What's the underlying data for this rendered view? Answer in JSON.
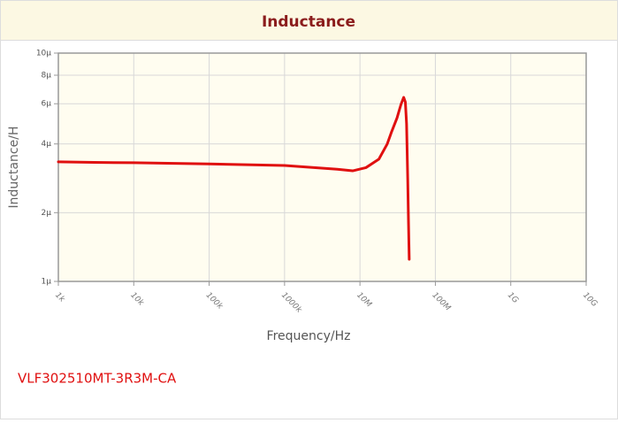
{
  "header": {
    "title": "Inductance"
  },
  "chart_data": {
    "type": "line",
    "xlabel": "Frequency/Hz",
    "ylabel": "Inductance/H",
    "xscale": "log",
    "yscale": "log",
    "grid": true,
    "xlim": [
      1000,
      10000000000
    ],
    "ylim": [
      1e-06,
      1e-05
    ],
    "xticks": [
      {
        "value": 1000,
        "label": "1k"
      },
      {
        "value": 10000,
        "label": "10k"
      },
      {
        "value": 100000,
        "label": "100k"
      },
      {
        "value": 1000000,
        "label": "1000k"
      },
      {
        "value": 10000000,
        "label": "10M"
      },
      {
        "value": 100000000,
        "label": "100M"
      },
      {
        "value": 1000000000,
        "label": "1G"
      },
      {
        "value": 10000000000,
        "label": "10G"
      }
    ],
    "yticks": [
      {
        "value": 1e-06,
        "label": "1µ"
      },
      {
        "value": 2e-06,
        "label": "2µ"
      },
      {
        "value": 4e-06,
        "label": "4µ"
      },
      {
        "value": 6e-06,
        "label": "6µ"
      },
      {
        "value": 8e-06,
        "label": "8µ"
      },
      {
        "value": 1e-05,
        "label": "10µ"
      }
    ],
    "x": [
      1000,
      3000,
      10000,
      100000,
      1000000,
      5000000,
      8000000,
      12000000,
      17800000,
      23000000,
      26000000,
      31000000,
      35000000,
      38000000,
      40000000,
      41500000,
      43000000,
      44000000,
      45000000
    ],
    "series": [
      {
        "name": "VLF302510MT-3R3M-CA",
        "color": "#e01010",
        "values": [
          3.34e-06,
          3.32e-06,
          3.31e-06,
          3.27e-06,
          3.22e-06,
          3.1e-06,
          3.05e-06,
          3.15e-06,
          3.43e-06,
          4e-06,
          4.48e-06,
          5.2e-06,
          5.96e-06,
          6.4e-06,
          6.1e-06,
          4.9e-06,
          2.8e-06,
          1.83e-06,
          1.25e-06
        ]
      }
    ]
  }
}
